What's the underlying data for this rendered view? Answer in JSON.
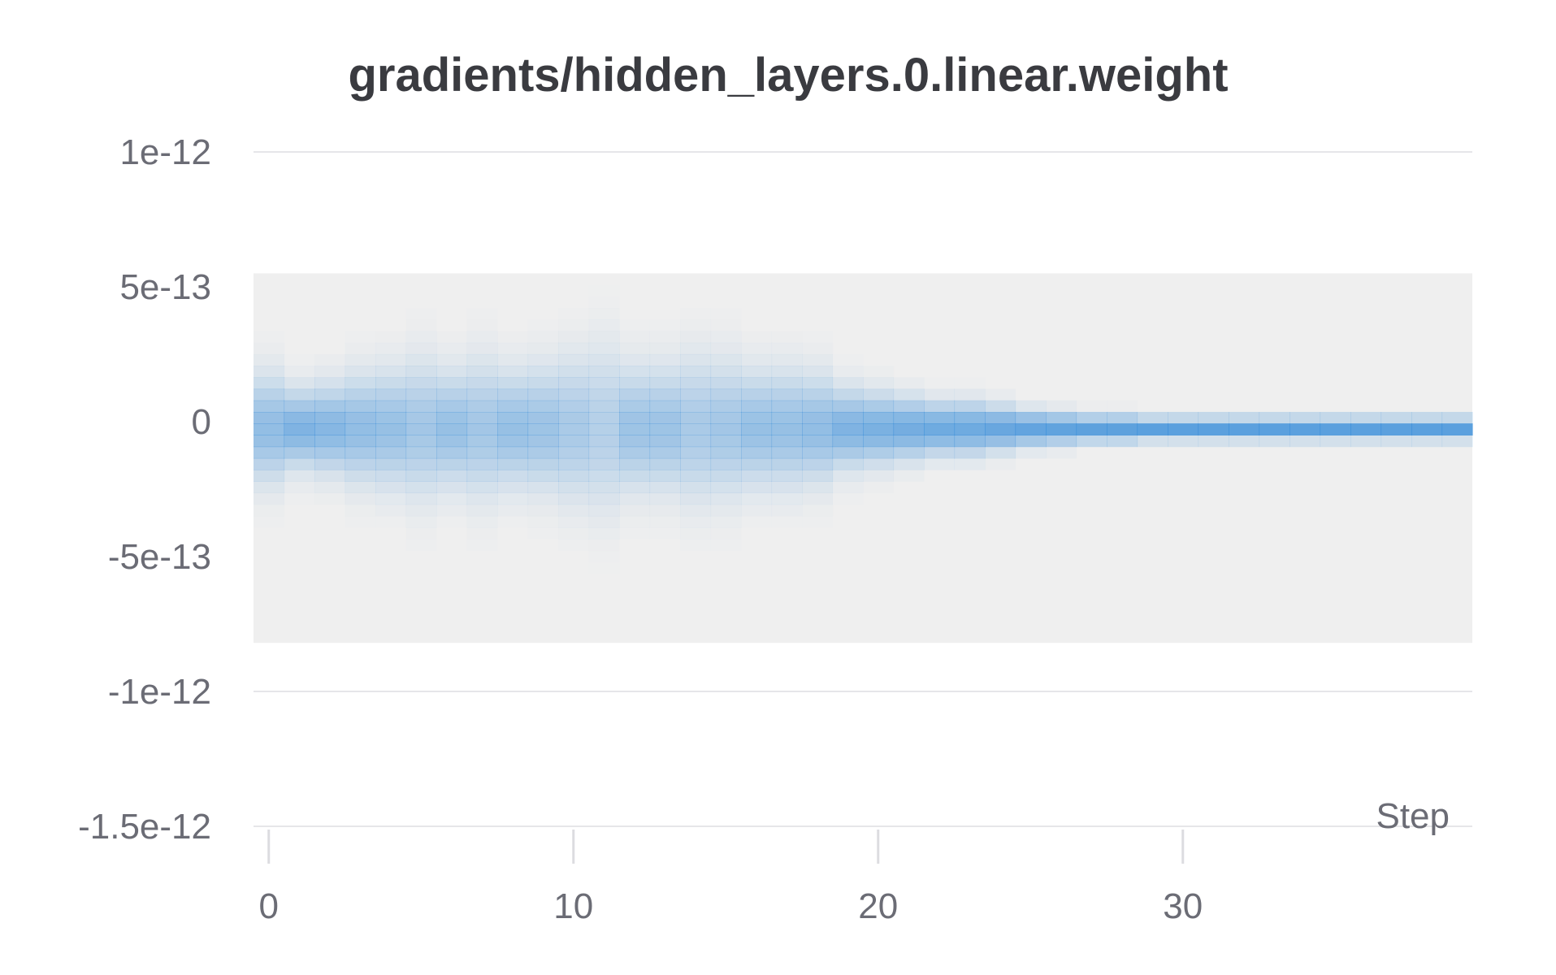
{
  "chart_data": {
    "type": "heatmap",
    "title": "gradients/hidden_layers.0.linear.weight",
    "xlabel": "Step",
    "ylabel": "",
    "x_ticks": [
      {
        "value": 0,
        "label": "0"
      },
      {
        "value": 10,
        "label": "10"
      },
      {
        "value": 20,
        "label": "20"
      },
      {
        "value": 30,
        "label": "30"
      }
    ],
    "y_ticks": [
      {
        "value": 1e-12,
        "label": "1e-12"
      },
      {
        "value": 5e-13,
        "label": "5e-13"
      },
      {
        "value": 0,
        "label": "0"
      },
      {
        "value": -5e-13,
        "label": "-5e-13"
      },
      {
        "value": -1e-12,
        "label": "-1e-12"
      },
      {
        "value": -1.5e-12,
        "label": "-1.5e-12"
      }
    ],
    "xlim": [
      -0.5,
      39.5
    ],
    "ylim": [
      -1.5e-12,
      1e-12
    ],
    "value_range": [
      -8.2e-13,
      5.5e-13
    ],
    "grid": true,
    "steps": 40,
    "bins": 32,
    "background_color": "#efefef",
    "cell_color": "#2f88d8",
    "center_value": -2.5e-14,
    "spread_profile": [
      [
        0,
        1.2e-13
      ],
      [
        1,
        9e-14
      ],
      [
        2,
        1e-13
      ],
      [
        3,
        1.2e-13
      ],
      [
        4,
        1.3e-13
      ],
      [
        5,
        1.5e-13
      ],
      [
        6,
        1.3e-13
      ],
      [
        7,
        1.5e-13
      ],
      [
        8,
        1.3e-13
      ],
      [
        9,
        1.4e-13
      ],
      [
        10,
        1.6e-13
      ],
      [
        11,
        1.8e-13
      ],
      [
        12,
        1.4e-13
      ],
      [
        13,
        1.4e-13
      ],
      [
        14,
        1.6e-13
      ],
      [
        15,
        1.5e-13
      ],
      [
        16,
        1.3e-13
      ],
      [
        17,
        1.3e-13
      ],
      [
        18,
        1.2e-13
      ],
      [
        19,
        9e-14
      ],
      [
        20,
        8e-14
      ],
      [
        21,
        7e-14
      ],
      [
        22,
        6e-14
      ],
      [
        23,
        6e-14
      ],
      [
        24,
        5e-14
      ],
      [
        25,
        4e-14
      ],
      [
        26,
        3.5e-14
      ],
      [
        27,
        3e-14
      ],
      [
        28,
        3e-14
      ],
      [
        29,
        2.5e-14
      ],
      [
        30,
        2.5e-14
      ],
      [
        31,
        2.5e-14
      ],
      [
        32,
        2.5e-14
      ],
      [
        33,
        2.5e-14
      ],
      [
        34,
        2.5e-14
      ],
      [
        35,
        2.5e-14
      ],
      [
        36,
        2.5e-14
      ],
      [
        37,
        2.5e-14
      ],
      [
        38,
        2.5e-14
      ],
      [
        39,
        2.5e-14
      ]
    ]
  }
}
